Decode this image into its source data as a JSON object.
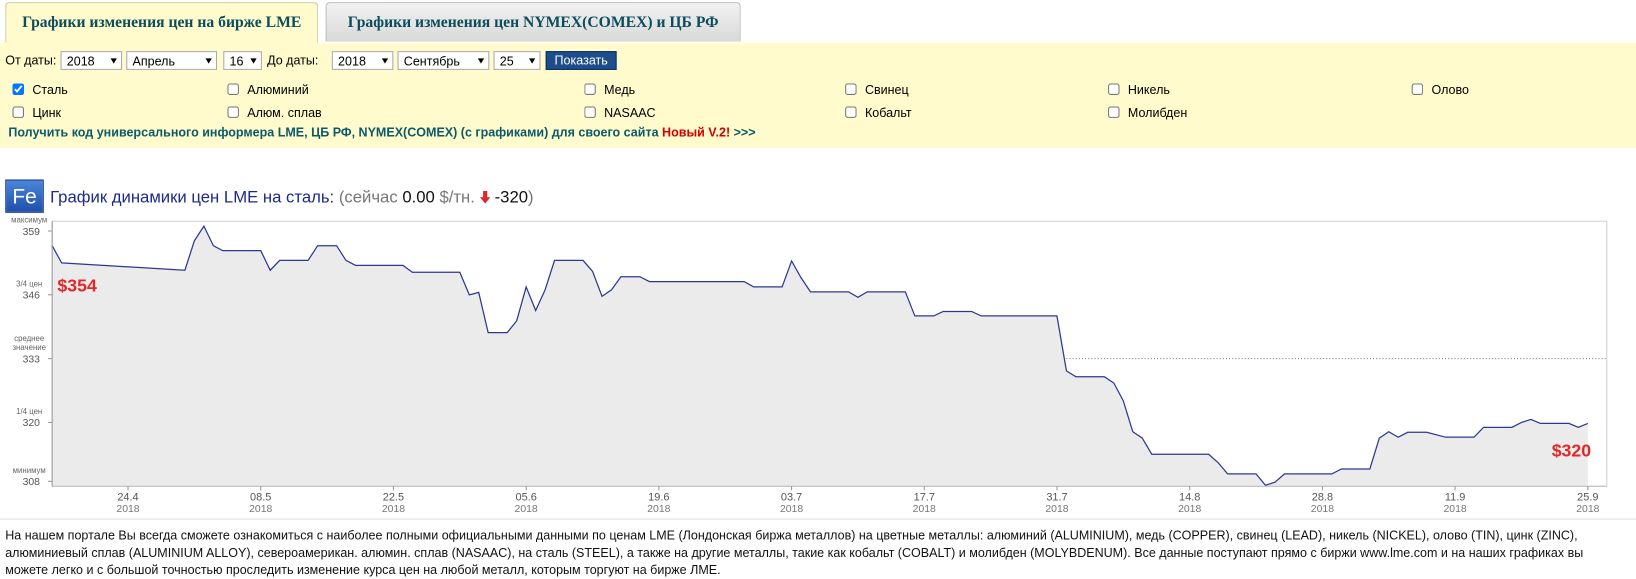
{
  "tabs": [
    "Графики изменения цен на бирже LME",
    "Графики изменения цен NYMEX(COMEX) и ЦБ РФ"
  ],
  "form": {
    "from_label": "От даты:",
    "from": {
      "year": "2018",
      "month": "Апрель",
      "day": "16"
    },
    "to_label": "До даты:",
    "to": {
      "year": "2018",
      "month": "Сентябрь",
      "day": "25"
    },
    "button": "Показать"
  },
  "metals": [
    {
      "name": "Сталь",
      "checked": true
    },
    {
      "name": "Алюминий",
      "checked": false
    },
    {
      "name": "Медь",
      "checked": false
    },
    {
      "name": "Свинец",
      "checked": false
    },
    {
      "name": "Никель",
      "checked": false
    },
    {
      "name": "Олово",
      "checked": false
    },
    {
      "name": "Цинк",
      "checked": false
    },
    {
      "name": "Алюм. сплав",
      "checked": false
    },
    {
      "name": "NASAAC",
      "checked": false
    },
    {
      "name": "Кобальт",
      "checked": false
    },
    {
      "name": "Молибден",
      "checked": false
    }
  ],
  "informer": {
    "text": "Получить код универсального информера LME, ЦБ РФ, NYMEX(COMEX) (с графиками) для своего сайта",
    "new": "Новый V.2!",
    "more": ">>>"
  },
  "chart_header": {
    "icon": "Fe",
    "title": "График динамики цен LME на сталь:",
    "now_open": "(сейчас",
    "price": "0.00",
    "unit": "$/тн.",
    "change": "-320",
    "close": ")"
  },
  "chart_data": {
    "type": "line",
    "color": "#2b3990",
    "fill": "#ebebeb",
    "x": [
      "2018-04-16",
      "2018-04-17",
      "2018-04-30",
      "2018-05-01",
      "2018-05-02",
      "2018-05-03",
      "2018-05-04",
      "2018-05-08",
      "2018-05-09",
      "2018-05-10",
      "2018-05-13",
      "2018-05-14",
      "2018-05-16",
      "2018-05-17",
      "2018-05-18",
      "2018-05-23",
      "2018-05-24",
      "2018-05-29",
      "2018-05-30",
      "2018-05-31",
      "2018-06-01",
      "2018-06-03",
      "2018-06-04",
      "2018-06-05",
      "2018-06-06",
      "2018-06-07",
      "2018-06-08",
      "2018-06-11",
      "2018-06-12",
      "2018-06-13",
      "2018-06-14",
      "2018-06-15",
      "2018-06-17",
      "2018-06-18",
      "2018-06-28",
      "2018-06-29",
      "2018-07-02",
      "2018-07-03",
      "2018-07-04",
      "2018-07-05",
      "2018-07-09",
      "2018-07-10",
      "2018-07-11",
      "2018-07-15",
      "2018-07-16",
      "2018-07-18",
      "2018-07-19",
      "2018-07-22",
      "2018-07-23",
      "2018-07-31",
      "2018-08-01",
      "2018-08-02",
      "2018-08-05",
      "2018-08-06",
      "2018-08-07",
      "2018-08-08",
      "2018-08-09",
      "2018-08-10",
      "2018-08-16",
      "2018-08-17",
      "2018-08-18",
      "2018-08-21",
      "2018-08-22",
      "2018-08-23",
      "2018-08-24",
      "2018-08-29",
      "2018-08-30",
      "2018-09-02",
      "2018-09-03",
      "2018-09-04",
      "2018-09-05",
      "2018-09-06",
      "2018-09-08",
      "2018-09-10",
      "2018-09-13",
      "2018-09-14",
      "2018-09-17",
      "2018-09-18",
      "2018-09-19",
      "2018-09-20",
      "2018-09-23",
      "2018-09-24",
      "2018-09-25"
    ],
    "values": [
      356,
      352.5,
      351,
      357,
      360,
      356,
      355,
      355,
      351,
      353,
      353,
      356,
      356,
      353,
      352,
      352,
      350.6,
      350.6,
      346,
      346.5,
      338.3,
      338.3,
      340.7,
      347.6,
      342.8,
      347,
      353,
      353,
      350.8,
      345.7,
      347,
      349.7,
      349.7,
      348.7,
      348.7,
      347.6,
      347.6,
      352.9,
      349.5,
      346.6,
      346.6,
      345.5,
      346.6,
      346.6,
      341.7,
      341.7,
      342.6,
      342.6,
      341.7,
      341.7,
      330.5,
      329.3,
      329.3,
      328,
      324.4,
      318.1,
      316.8,
      313.5,
      313.5,
      311.8,
      309.5,
      309.5,
      307.2,
      307.8,
      309.5,
      309.5,
      310.5,
      310.5,
      316.8,
      318.1,
      317,
      318,
      318,
      317,
      317,
      319,
      319,
      320,
      320.6,
      319.8,
      319.8,
      319,
      319.8
    ],
    "xlim": [
      "2018-04-16",
      "2018-09-27"
    ],
    "xticks": [
      {
        "value": "2018-04-24",
        "label": "24.4",
        "year": "2018"
      },
      {
        "value": "2018-05-08",
        "label": "08.5",
        "year": "2018"
      },
      {
        "value": "2018-05-22",
        "label": "22.5",
        "year": "2018"
      },
      {
        "value": "2018-06-05",
        "label": "05.6",
        "year": "2018"
      },
      {
        "value": "2018-06-19",
        "label": "19.6",
        "year": "2018"
      },
      {
        "value": "2018-07-03",
        "label": "03.7",
        "year": "2018"
      },
      {
        "value": "2018-07-17",
        "label": "17.7",
        "year": "2018"
      },
      {
        "value": "2018-07-31",
        "label": "31.7",
        "year": "2018"
      },
      {
        "value": "2018-08-14",
        "label": "14.8",
        "year": "2018"
      },
      {
        "value": "2018-08-28",
        "label": "28.8",
        "year": "2018"
      },
      {
        "value": "2018-09-11",
        "label": "11.9",
        "year": "2018"
      },
      {
        "value": "2018-09-25",
        "label": "25.9",
        "year": "2018"
      }
    ],
    "ylim": [
      307,
      361
    ],
    "yticks": [
      359,
      346,
      333,
      320,
      308
    ],
    "ytick_captions": [
      [
        "максимум"
      ],
      [
        "3/4 цен"
      ],
      [
        "среднее",
        "значение"
      ],
      [
        "1/4 цен"
      ],
      [
        "минимум"
      ]
    ],
    "grid": "mean",
    "annotations": [
      {
        "text": "$354",
        "color": "#e0282b"
      },
      {
        "text": "$320",
        "color": "#e0282b"
      }
    ]
  },
  "footer": "На нашем портале Вы всегда сможете ознакомиться с наиболее полными официальными данными по ценам LME (Лондонская биржа металлов) на цветные металлы: алюминий (ALUMINIUM), медь (COPPER), свинец (LEAD), никель (NICKEL), олово (TIN), цинк (ZINC), алюминиевый сплав (ALUMINIUM ALLOY), североамерикан. алюмин. сплав (NASAAC), на сталь (STEEL), а также на другие металлы, такие как кобальт (COBALT) и молибден (MOLYBDENUM). Все данные поступают прямо с биржи www.lme.com и на наших графиках вы можете легко и с большой точностью проследить изменение курса цен на любой металл, которым торгуют на бирже ЛМЕ."
}
